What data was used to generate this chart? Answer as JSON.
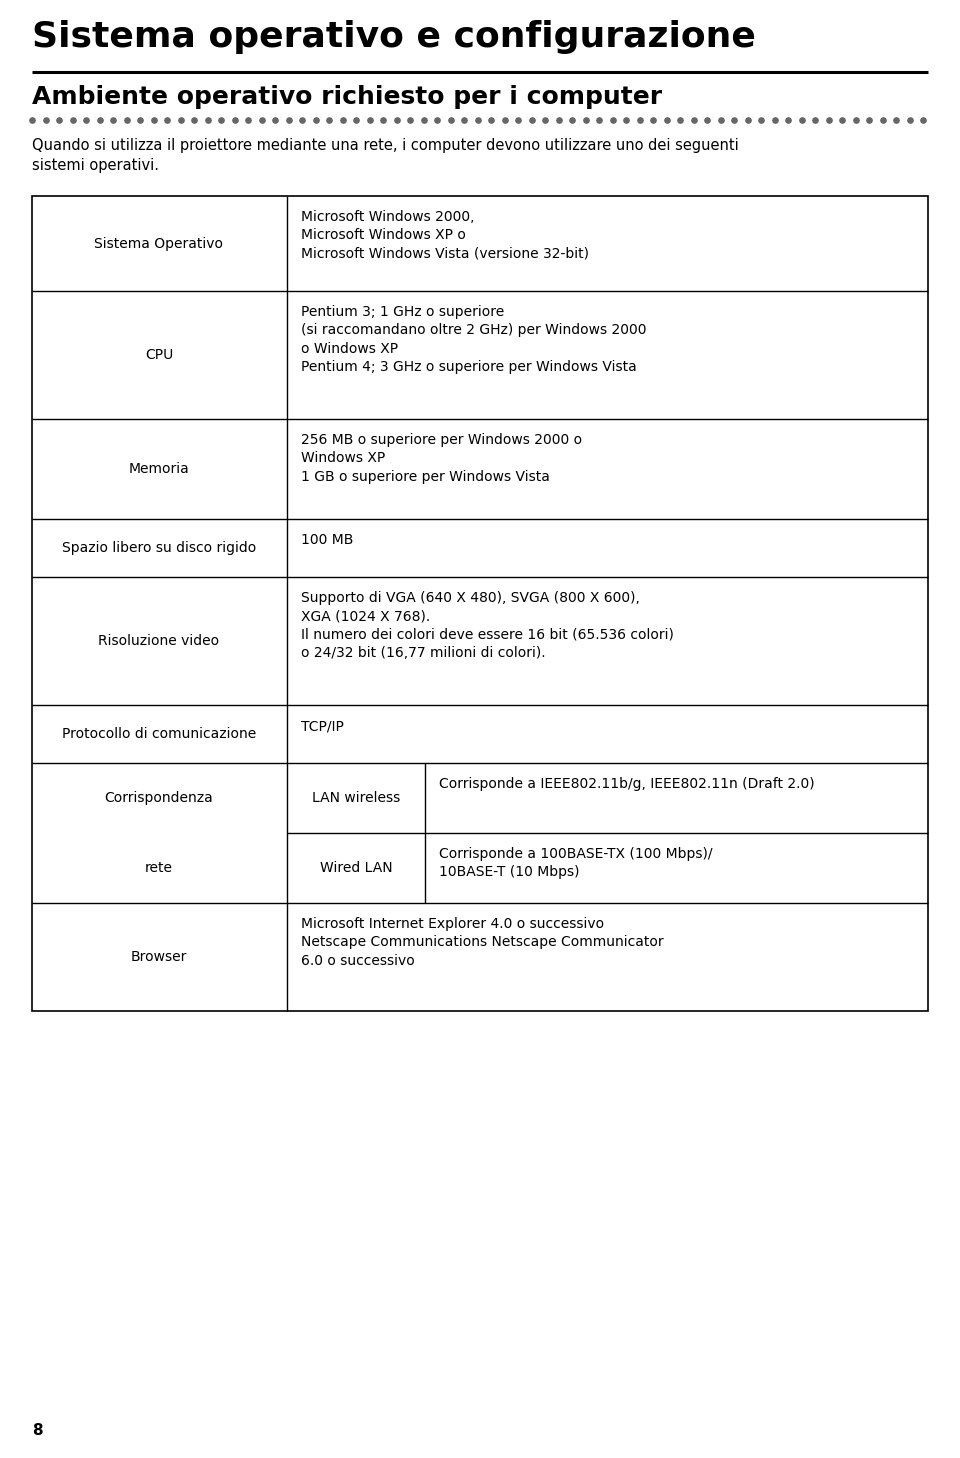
{
  "title": "Sistema operativo e configurazione",
  "subtitle": "Ambiente operativo richiesto per i computer",
  "intro": "Quando si utilizza il proiettore mediante una rete, i computer devono utilizzare uno dei seguenti\nsistemi operativi.",
  "page_number": "8",
  "bg_color": "#ffffff",
  "text_color": "#000000",
  "dot_color": "#555555",
  "rows": [
    {
      "label": "Sistema Operativo",
      "value": "Microsoft Windows 2000,\nMicrosoft Windows XP o\nMicrosoft Windows Vista (versione 32-bit)",
      "sub_label": null,
      "sub_label2": null
    },
    {
      "label": "CPU",
      "value": "Pentium 3; 1 GHz o superiore\n(si raccomandano oltre 2 GHz) per Windows 2000\no Windows XP\nPentium 4; 3 GHz o superiore per Windows Vista",
      "sub_label": null,
      "sub_label2": null
    },
    {
      "label": "Memoria",
      "value": "256 MB o superiore per Windows 2000 o\nWindows XP\n1 GB o superiore per Windows Vista",
      "sub_label": null,
      "sub_label2": null
    },
    {
      "label": "Spazio libero su disco rigido",
      "value": "100 MB",
      "sub_label": null,
      "sub_label2": null
    },
    {
      "label": "Risoluzione video",
      "value": "Supporto di VGA (640 X 480), SVGA (800 X 600),\nXGA (1024 X 768).\nIl numero dei colori deve essere 16 bit (65.536 colori)\no 24/32 bit (16,77 milioni di colori).",
      "sub_label": null,
      "sub_label2": null
    },
    {
      "label": "Protocollo di comunicazione",
      "value": "TCP/IP",
      "sub_label": null,
      "sub_label2": null
    },
    {
      "label": "Corrispondenza\n\nrete",
      "value_lan": "Corrisponde a IEEE802.11b/g, IEEE802.11n (Draft 2.0)",
      "value_wired": "Corrisponde a 100BASE-TX (100 Mbps)/\n10BASE-T (10 Mbps)",
      "sub_label": "LAN wireless",
      "sub_label2": "Wired LAN"
    },
    {
      "label": "Browser",
      "value": "Microsoft Internet Explorer 4.0 o successivo\nNetscape Communications Netscape Communicator\n6.0 o successivo",
      "sub_label": null,
      "sub_label2": null
    }
  ]
}
